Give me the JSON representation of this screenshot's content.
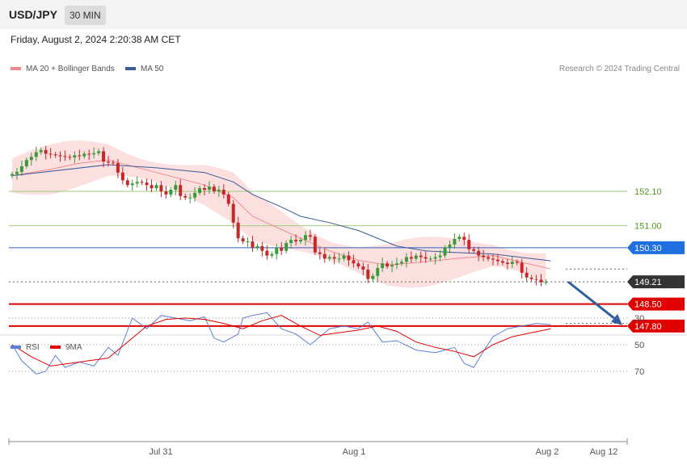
{
  "header": {
    "symbol": "USD/JPY",
    "timeframe": "30 MIN"
  },
  "datetime": "Friday, August 2, 2024 2:20:38 AM CET",
  "legend": [
    {
      "label": "MA 20 + Bollinger Bands",
      "color": "#f08a8a"
    },
    {
      "label": "MA 50",
      "color": "#3a5a99"
    }
  ],
  "rsi_legend": [
    {
      "label": "RSI",
      "color": "#5b7fd6"
    },
    {
      "label": "9MA",
      "color": "#e00000"
    }
  ],
  "credit": "Research © 2024 Trading Central",
  "colors": {
    "up": "#3a9a3a",
    "down": "#c62828",
    "bands": "#fbdada",
    "ma20": "#f08a8a",
    "ma50": "#3a5a99",
    "rsi": "#5b7fd6",
    "rsi_ma": "#e00000"
  },
  "chart_data": [
    {
      "type": "candlestick",
      "series": [
        {
          "name": "MA 20 + Bollinger Bands"
        },
        {
          "name": "MA 50"
        }
      ],
      "close": [
        152.65,
        152.72,
        152.9,
        153.1,
        153.2,
        153.35,
        153.42,
        153.3,
        153.28,
        153.25,
        153.22,
        153.2,
        153.18,
        153.25,
        153.22,
        153.3,
        153.28,
        153.32,
        153.38,
        153.05,
        153.02,
        153.0,
        152.7,
        152.45,
        152.3,
        152.35,
        152.4,
        152.38,
        152.3,
        152.2,
        152.3,
        152.1,
        152.0,
        152.15,
        152.3,
        151.95,
        151.9,
        151.9,
        152.05,
        152.2,
        152.15,
        152.25,
        152.1,
        152.15,
        152.0,
        151.7,
        151.1,
        150.6,
        150.5,
        150.5,
        150.3,
        150.35,
        150.2,
        150.05,
        150.1,
        150.3,
        150.2,
        150.45,
        150.55,
        150.5,
        150.55,
        150.7,
        150.65,
        150.15,
        150.1,
        149.95,
        150.0,
        149.95,
        149.95,
        150.05,
        149.9,
        149.8,
        149.7,
        149.6,
        149.3,
        149.4,
        149.65,
        149.8,
        149.7,
        149.75,
        149.8,
        149.85,
        150.0,
        149.95,
        150.05,
        150.0,
        149.95,
        149.95,
        150.0,
        150.05,
        150.3,
        150.4,
        150.58,
        150.65,
        150.55,
        150.25,
        150.2,
        150.05,
        150.0,
        149.95,
        149.92,
        149.87,
        149.82,
        149.78,
        149.85,
        149.82,
        149.5,
        149.35,
        149.3,
        149.28,
        149.2,
        149.21
      ],
      "ma20_x_index": [
        0,
        8,
        14,
        20,
        30,
        40,
        46,
        50,
        60,
        66,
        72,
        78,
        86,
        92,
        100,
        112
      ],
      "ma20": [
        152.6,
        152.8,
        153.0,
        153.1,
        152.7,
        152.3,
        151.9,
        151.3,
        150.6,
        150.2,
        149.9,
        149.75,
        149.85,
        149.95,
        150.05,
        149.62
      ],
      "ma50_x_index": [
        0,
        20,
        30,
        40,
        46,
        50,
        56,
        60,
        66,
        72,
        80,
        86,
        92,
        100,
        112
      ],
      "ma50": [
        152.6,
        152.95,
        152.85,
        152.7,
        152.4,
        152.0,
        151.6,
        151.3,
        151.1,
        150.85,
        150.35,
        150.2,
        150.15,
        150.1,
        149.88
      ],
      "levels": [
        {
          "value": 152.1,
          "label": "152.10"
        },
        {
          "value": 151.0,
          "label": "151.00"
        },
        {
          "value": 150.3,
          "label": "150.30"
        },
        {
          "value": 149.21,
          "label": "149.21"
        },
        {
          "value": 148.5,
          "label": "148.50"
        },
        {
          "value": 147.8,
          "label": "147.80"
        }
      ],
      "projection": {
        "from": 149.21,
        "to": 147.8
      },
      "x_ticks": [
        "Jul 31",
        "Aug 1",
        "Aug 2",
        "Aug 12"
      ]
    },
    {
      "type": "line",
      "series": [
        {
          "name": "RSI",
          "x_index": [
            0,
            2,
            5,
            7,
            9,
            11,
            14,
            17,
            20,
            22,
            25,
            28,
            31,
            34,
            37,
            40,
            42,
            44,
            47,
            48,
            50,
            53,
            56,
            59,
            62,
            66,
            69,
            72,
            74,
            77,
            80,
            84,
            88,
            92,
            94,
            96,
            98,
            100,
            103,
            106,
            109,
            112
          ],
          "values": [
            50,
            62,
            72,
            70,
            58,
            67,
            63,
            66,
            52,
            58,
            30,
            38,
            28,
            30,
            32,
            29,
            45,
            48,
            42,
            30,
            28,
            26,
            38,
            42,
            50,
            38,
            36,
            38,
            33,
            48,
            47,
            54,
            56,
            52,
            64,
            67,
            55,
            44,
            38,
            36,
            34,
            35
          ]
        },
        {
          "name": "9MA",
          "x_index": [
            0,
            4,
            8,
            12,
            16,
            20,
            24,
            28,
            32,
            36,
            40,
            44,
            48,
            52,
            56,
            60,
            64,
            68,
            72,
            76,
            80,
            84,
            88,
            92,
            96,
            100,
            104,
            108,
            112
          ],
          "values": [
            50,
            59,
            66,
            64,
            62,
            60,
            48,
            36,
            31,
            30,
            31,
            34,
            38,
            32,
            28,
            36,
            43,
            41,
            39,
            36,
            40,
            48,
            52,
            55,
            59,
            50,
            44,
            41,
            38
          ]
        }
      ],
      "y_ticks": [
        70,
        50,
        30
      ]
    }
  ]
}
